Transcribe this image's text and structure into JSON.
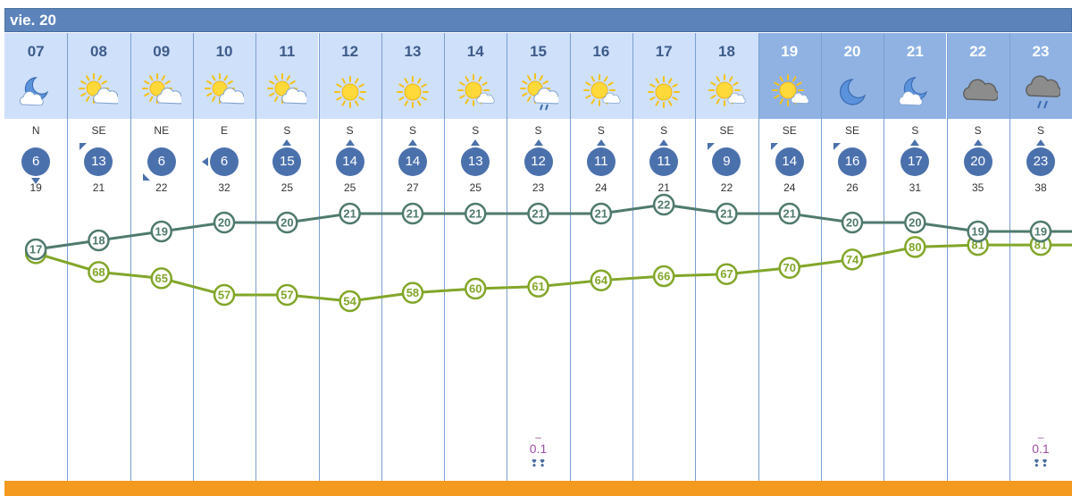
{
  "header": {
    "day_label": "vie. 20"
  },
  "colors": {
    "header": "#5c84bb",
    "day_bg": "#cfe0fa",
    "night_bg": "#8fb2e3",
    "wind": "#4b71ad",
    "temp_line": "#4f7a6e",
    "humidity_line": "#82a62a",
    "rain": "#a04fa6",
    "bottom_bar": "#f39a1f"
  },
  "hours": [
    {
      "hour": "07",
      "icon": "moon-cloud-icon",
      "night": false,
      "dir": "N",
      "wind": "6",
      "gust": "19",
      "temp": 17,
      "hum": 77,
      "arrow": "s"
    },
    {
      "hour": "08",
      "icon": "sun-cloud-icon",
      "night": false,
      "dir": "SE",
      "wind": "13",
      "gust": "21",
      "temp": 18,
      "hum": 68,
      "arrow": "nw"
    },
    {
      "hour": "09",
      "icon": "sun-cloud-icon",
      "night": false,
      "dir": "NE",
      "wind": "6",
      "gust": "22",
      "temp": 19,
      "hum": 65,
      "arrow": "sw"
    },
    {
      "hour": "10",
      "icon": "sun-cloud-icon",
      "night": false,
      "dir": "E",
      "wind": "6",
      "gust": "32",
      "temp": 20,
      "hum": 57,
      "arrow": "w"
    },
    {
      "hour": "11",
      "icon": "sun-cloud-icon",
      "night": false,
      "dir": "S",
      "wind": "15",
      "gust": "25",
      "temp": 20,
      "hum": 57,
      "arrow": "n"
    },
    {
      "hour": "12",
      "icon": "sun-icon",
      "night": false,
      "dir": "S",
      "wind": "14",
      "gust": "25",
      "temp": 21,
      "hum": 54,
      "arrow": "n"
    },
    {
      "hour": "13",
      "icon": "sun-icon",
      "night": false,
      "dir": "S",
      "wind": "14",
      "gust": "27",
      "temp": 21,
      "hum": 58,
      "arrow": "n"
    },
    {
      "hour": "14",
      "icon": "sun-small-cloud-icon",
      "night": false,
      "dir": "S",
      "wind": "13",
      "gust": "25",
      "temp": 21,
      "hum": 60,
      "arrow": "n"
    },
    {
      "hour": "15",
      "icon": "sun-rain-icon",
      "night": false,
      "dir": "S",
      "wind": "12",
      "gust": "23",
      "temp": 21,
      "hum": 61,
      "arrow": "n",
      "rain": "0.1"
    },
    {
      "hour": "16",
      "icon": "sun-small-cloud-icon",
      "night": false,
      "dir": "S",
      "wind": "11",
      "gust": "24",
      "temp": 21,
      "hum": 64,
      "arrow": "n"
    },
    {
      "hour": "17",
      "icon": "sun-icon",
      "night": false,
      "dir": "S",
      "wind": "11",
      "gust": "21",
      "temp": 22,
      "hum": 66,
      "arrow": "n"
    },
    {
      "hour": "18",
      "icon": "sun-small-cloud-icon",
      "night": false,
      "dir": "SE",
      "wind": "9",
      "gust": "22",
      "temp": 21,
      "hum": 67,
      "arrow": "nw"
    },
    {
      "hour": "19",
      "icon": "sun-small-cloud-icon",
      "night": true,
      "dir": "SE",
      "wind": "14",
      "gust": "24",
      "temp": 21,
      "hum": 70,
      "arrow": "nw"
    },
    {
      "hour": "20",
      "icon": "moon-icon",
      "night": true,
      "dir": "SE",
      "wind": "16",
      "gust": "26",
      "temp": 20,
      "hum": 74,
      "arrow": "nw"
    },
    {
      "hour": "21",
      "icon": "moon-cloud-icon",
      "night": true,
      "dir": "S",
      "wind": "17",
      "gust": "31",
      "temp": 20,
      "hum": 80,
      "arrow": "n"
    },
    {
      "hour": "22",
      "icon": "cloud-icon",
      "night": true,
      "dir": "S",
      "wind": "20",
      "gust": "35",
      "temp": 19,
      "hum": 81,
      "arrow": "n"
    },
    {
      "hour": "23",
      "icon": "cloud-rain-icon",
      "night": true,
      "dir": "S",
      "wind": "23",
      "gust": "38",
      "temp": 19,
      "hum": 81,
      "arrow": "n",
      "rain": "0.1"
    }
  ]
}
